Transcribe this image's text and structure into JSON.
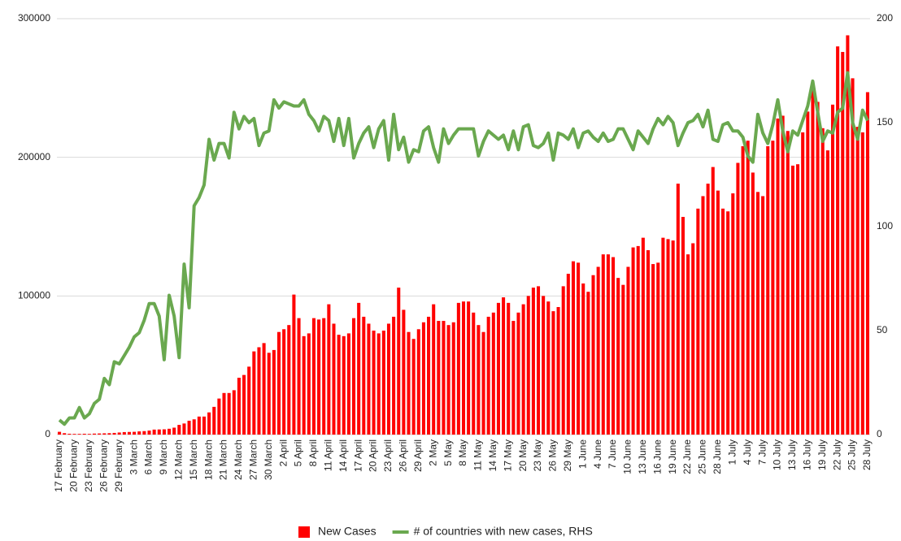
{
  "chart_data": {
    "type": "combo",
    "categories": [
      "17 February",
      null,
      null,
      "20 February",
      null,
      null,
      "23 February",
      null,
      null,
      "26 February",
      null,
      null,
      "29 February",
      null,
      null,
      "3 March",
      null,
      null,
      "6 March",
      null,
      null,
      "9 March",
      null,
      null,
      "12 March",
      null,
      null,
      "15 March",
      null,
      null,
      "18 March",
      null,
      null,
      "21 March",
      null,
      null,
      "24 March",
      null,
      null,
      "27 March",
      null,
      null,
      "30 March",
      null,
      null,
      "2 April",
      null,
      null,
      "5 April",
      null,
      null,
      "8 April",
      null,
      null,
      "11 April",
      null,
      null,
      "14 April",
      null,
      null,
      "17 April",
      null,
      null,
      "20 April",
      null,
      null,
      "23 April",
      null,
      null,
      "26 April",
      null,
      null,
      "29 April",
      null,
      null,
      "2 May",
      null,
      null,
      "5 May",
      null,
      null,
      "8 May",
      null,
      null,
      "11 May",
      null,
      null,
      "14 May",
      null,
      null,
      "17 May",
      null,
      null,
      "20 May",
      null,
      null,
      "23 May",
      null,
      null,
      "26 May",
      null,
      null,
      "29 May",
      null,
      null,
      "1 June",
      null,
      null,
      "4 June",
      null,
      null,
      "7 June",
      null,
      null,
      "10 June",
      null,
      null,
      "13 June",
      null,
      null,
      "16 June",
      null,
      null,
      "19 June",
      null,
      null,
      "22 June",
      null,
      null,
      "25 June",
      null,
      null,
      "28 June",
      null,
      null,
      "1 July",
      null,
      null,
      "4 July",
      null,
      null,
      "7 July",
      null,
      null,
      "10 July",
      null,
      null,
      "13 July",
      null,
      null,
      "16 July",
      null,
      null,
      "19 July",
      null,
      null,
      "22 July",
      null,
      null,
      "25 July",
      null,
      null,
      "28 July"
    ],
    "series": [
      {
        "name": "New Cases",
        "type": "bar",
        "color": "#ff0000",
        "values": [
          2000,
          1000,
          600,
          500,
          500,
          600,
          500,
          700,
          800,
          900,
          1000,
          1200,
          1500,
          1800,
          1900,
          2000,
          2300,
          2500,
          2900,
          3600,
          3700,
          3800,
          4200,
          5000,
          7000,
          8000,
          10000,
          11000,
          13000,
          13000,
          16000,
          20000,
          26000,
          30000,
          30000,
          32000,
          41000,
          43000,
          49000,
          60000,
          63000,
          66000,
          59000,
          61000,
          74000,
          76000,
          79000,
          101000,
          84000,
          71000,
          73000,
          84000,
          83000,
          84000,
          94000,
          80000,
          72000,
          71000,
          73000,
          84000,
          95000,
          85000,
          80000,
          75000,
          73000,
          75000,
          80000,
          85000,
          106000,
          90000,
          74000,
          69000,
          76000,
          81000,
          85000,
          94000,
          82000,
          82000,
          79000,
          81000,
          95000,
          96000,
          96000,
          88000,
          79000,
          74000,
          85000,
          88000,
          95000,
          99000,
          95000,
          82000,
          88000,
          94000,
          100000,
          106000,
          107000,
          100000,
          96000,
          89000,
          92000,
          107000,
          116000,
          125000,
          124000,
          109000,
          103000,
          115000,
          121000,
          130000,
          130000,
          128000,
          113000,
          108000,
          121000,
          135000,
          136000,
          142000,
          133000,
          123000,
          124000,
          142000,
          141000,
          140000,
          181000,
          157000,
          130000,
          138000,
          163000,
          172000,
          181000,
          193000,
          176000,
          163000,
          161000,
          174000,
          196000,
          208000,
          212000,
          189000,
          175000,
          172000,
          208000,
          212000,
          228000,
          230000,
          219000,
          194000,
          195000,
          218000,
          233000,
          249000,
          240000,
          221000,
          205000,
          238000,
          280000,
          276000,
          288000,
          257000,
          222000,
          218000,
          247000
        ]
      },
      {
        "name": "# of countries with new cases, RHS",
        "type": "line",
        "axis": "y2",
        "color": "#6aa84f",
        "values": [
          7,
          5,
          8,
          8,
          13,
          8,
          10,
          15,
          17,
          27,
          24,
          35,
          34,
          38,
          42,
          47,
          49,
          55,
          63,
          63,
          57,
          36,
          67,
          57,
          37,
          82,
          61,
          110,
          114,
          120,
          142,
          132,
          140,
          140,
          133,
          155,
          147,
          153,
          150,
          152,
          139,
          145,
          146,
          161,
          157,
          160,
          159,
          158,
          158,
          161,
          154,
          151,
          146,
          153,
          151,
          141,
          152,
          139,
          152,
          133,
          140,
          145,
          148,
          138,
          147,
          151,
          132,
          154,
          137,
          143,
          131,
          137,
          136,
          146,
          148,
          138,
          131,
          147,
          140,
          144,
          147,
          147,
          147,
          147,
          134,
          141,
          146,
          144,
          142,
          144,
          137,
          146,
          137,
          148,
          149,
          139,
          138,
          140,
          145,
          132,
          145,
          144,
          142,
          147,
          138,
          145,
          146,
          143,
          141,
          145,
          141,
          142,
          147,
          147,
          142,
          137,
          146,
          143,
          140,
          147,
          152,
          149,
          153,
          150,
          139,
          145,
          150,
          151,
          154,
          148,
          156,
          142,
          141,
          149,
          150,
          146,
          146,
          143,
          134,
          131,
          154,
          145,
          140,
          149,
          161,
          146,
          136,
          146,
          144,
          151,
          158,
          170,
          155,
          141,
          146,
          145,
          155,
          157,
          174,
          150,
          142,
          156,
          151
        ]
      }
    ],
    "ylim": [
      0,
      300000
    ],
    "yticks": [
      0,
      100000,
      200000,
      300000
    ],
    "y2lim": [
      0,
      200
    ],
    "y2ticks": [
      0,
      50,
      100,
      150,
      200
    ],
    "grid": true,
    "legend": "bottom"
  }
}
